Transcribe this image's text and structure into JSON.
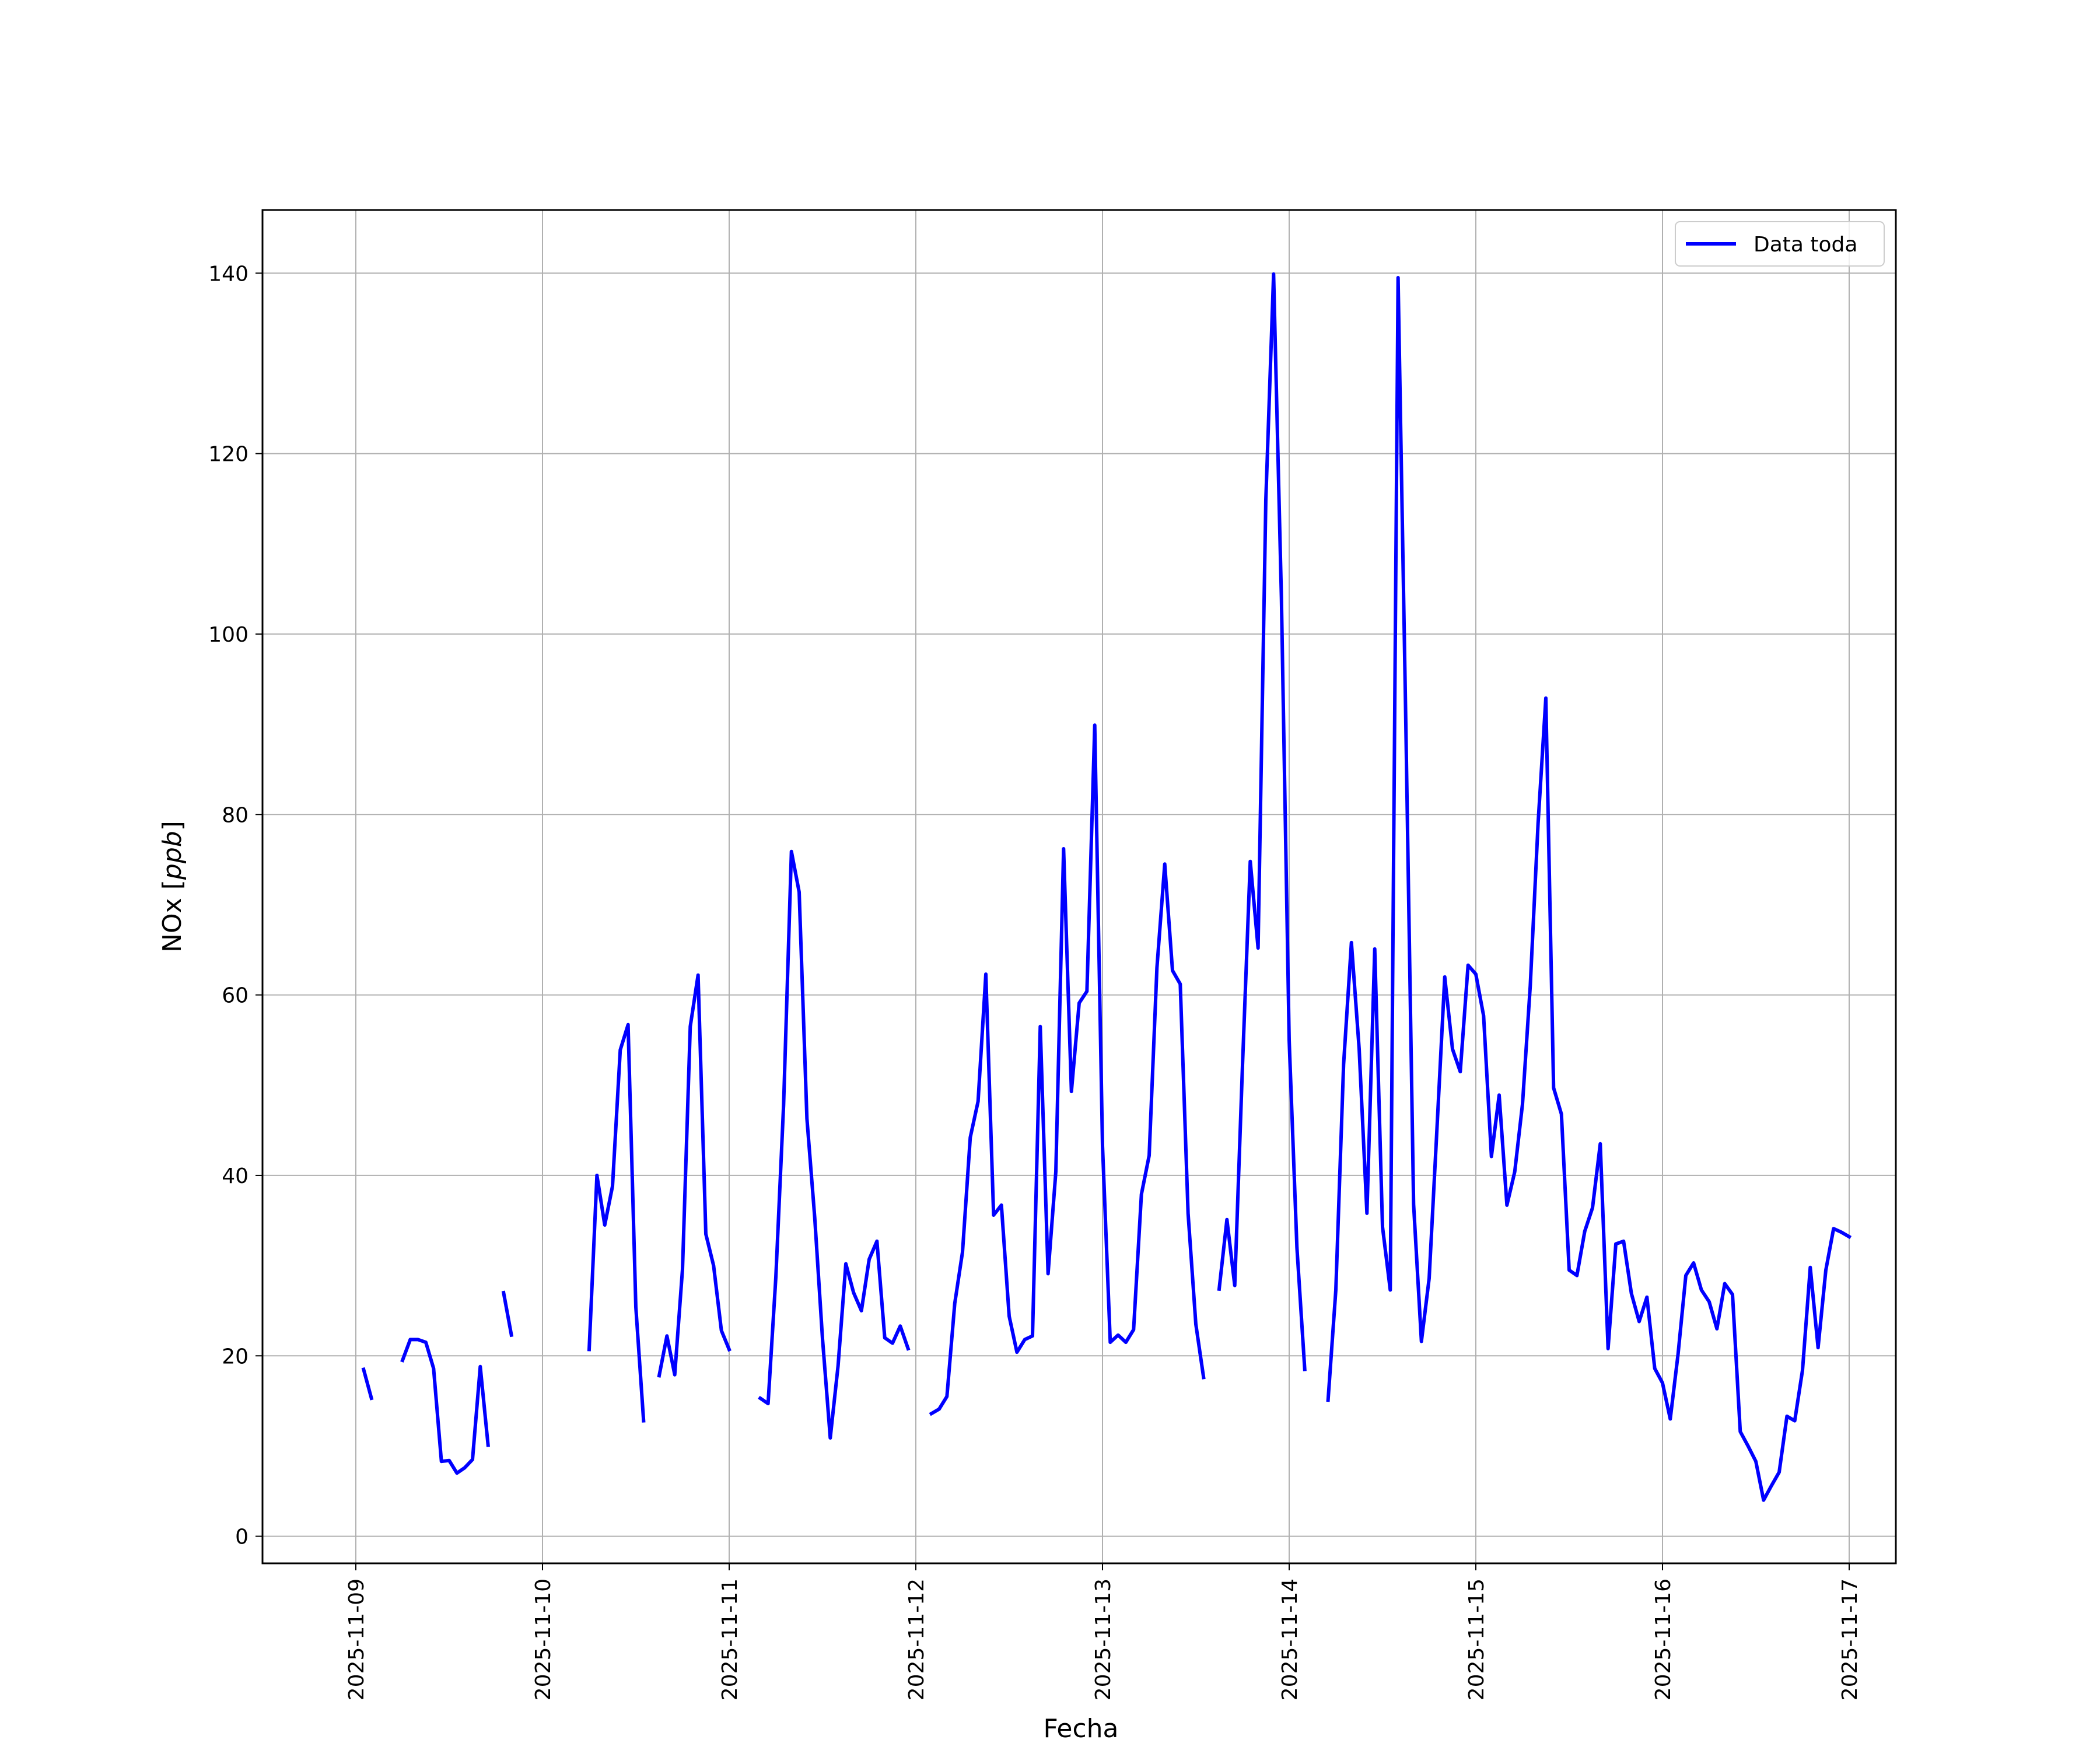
{
  "chart_data": {
    "type": "line",
    "title": "",
    "xlabel": "Fecha",
    "ylabel_main": "NOx [",
    "ylabel_unit": "ppb",
    "ylabel_close": "]",
    "x_ticks": [
      "2025-11-09",
      "2025-11-10",
      "2025-11-11",
      "2025-11-12",
      "2025-11-13",
      "2025-11-14",
      "2025-11-15",
      "2025-11-16",
      "2025-11-17"
    ],
    "y_ticks": [
      0,
      20,
      40,
      60,
      80,
      100,
      120,
      140
    ],
    "xlim": [
      "2025-11-08 12:00",
      "2025-11-17 06:00"
    ],
    "ylim": [
      -3,
      147
    ],
    "grid": true,
    "legend_position": "top-right",
    "series": [
      {
        "name": "Data toda",
        "color": "#0000ff",
        "segments": [
          [
            [
              "2025-11-09 01:00",
              18.5
            ],
            [
              "2025-11-09 02:00",
              15.3
            ]
          ],
          [
            [
              "2025-11-09 06:00",
              19.5
            ],
            [
              "2025-11-09 07:00",
              21.8
            ],
            [
              "2025-11-09 08:00",
              21.8
            ],
            [
              "2025-11-09 09:00",
              21.5
            ],
            [
              "2025-11-09 10:00",
              18.6
            ],
            [
              "2025-11-09 11:00",
              8.3
            ],
            [
              "2025-11-09 12:00",
              8.4
            ],
            [
              "2025-11-09 13:00",
              7.0
            ],
            [
              "2025-11-09 14:00",
              7.6
            ],
            [
              "2025-11-09 15:00",
              8.5
            ],
            [
              "2025-11-09 16:00",
              18.8
            ],
            [
              "2025-11-09 17:00",
              10.1
            ]
          ],
          [
            [
              "2025-11-09 19:00",
              27.0
            ],
            [
              "2025-11-09 20:00",
              22.3
            ]
          ],
          [
            [
              "2025-11-10 06:00",
              20.7
            ],
            [
              "2025-11-10 07:00",
              40.0
            ],
            [
              "2025-11-10 08:00",
              34.5
            ],
            [
              "2025-11-10 09:00",
              38.8
            ],
            [
              "2025-11-10 10:00",
              53.9
            ],
            [
              "2025-11-10 11:00",
              56.7
            ],
            [
              "2025-11-10 12:00",
              25.4
            ],
            [
              "2025-11-10 13:00",
              12.8
            ]
          ],
          [
            [
              "2025-11-10 15:00",
              17.8
            ],
            [
              "2025-11-10 16:00",
              22.2
            ],
            [
              "2025-11-10 17:00",
              17.9
            ],
            [
              "2025-11-10 18:00",
              29.6
            ],
            [
              "2025-11-10 19:00",
              56.5
            ],
            [
              "2025-11-10 20:00",
              62.2
            ],
            [
              "2025-11-10 21:00",
              33.5
            ],
            [
              "2025-11-10 22:00",
              30.0
            ],
            [
              "2025-11-10 23:00",
              22.8
            ],
            [
              "2025-11-11 00:00",
              20.7
            ]
          ],
          [
            [
              "2025-11-11 04:00",
              15.3
            ],
            [
              "2025-11-11 05:00",
              14.7
            ],
            [
              "2025-11-11 06:00",
              28.7
            ],
            [
              "2025-11-11 07:00",
              47.8
            ],
            [
              "2025-11-11 08:00",
              75.9
            ],
            [
              "2025-11-11 09:00",
              71.4
            ],
            [
              "2025-11-11 10:00",
              46.3
            ],
            [
              "2025-11-11 11:00",
              35.3
            ],
            [
              "2025-11-11 12:00",
              21.9
            ],
            [
              "2025-11-11 13:00",
              10.9
            ],
            [
              "2025-11-11 14:00",
              18.9
            ],
            [
              "2025-11-11 15:00",
              30.2
            ],
            [
              "2025-11-11 16:00",
              27.0
            ],
            [
              "2025-11-11 17:00",
              25.0
            ],
            [
              "2025-11-11 18:00",
              30.7
            ],
            [
              "2025-11-11 19:00",
              32.7
            ],
            [
              "2025-11-11 20:00",
              22.0
            ],
            [
              "2025-11-11 21:00",
              21.4
            ],
            [
              "2025-11-11 22:00",
              23.3
            ],
            [
              "2025-11-11 23:00",
              20.8
            ]
          ],
          [
            [
              "2025-11-12 02:00",
              13.6
            ],
            [
              "2025-11-12 03:00",
              14.1
            ],
            [
              "2025-11-12 04:00",
              15.5
            ],
            [
              "2025-11-12 05:00",
              25.8
            ],
            [
              "2025-11-12 06:00",
              31.5
            ],
            [
              "2025-11-12 07:00",
              44.2
            ],
            [
              "2025-11-12 08:00",
              48.2
            ],
            [
              "2025-11-12 09:00",
              62.3
            ],
            [
              "2025-11-12 10:00",
              35.6
            ],
            [
              "2025-11-12 11:00",
              36.7
            ],
            [
              "2025-11-12 12:00",
              24.4
            ],
            [
              "2025-11-12 13:00",
              20.4
            ],
            [
              "2025-11-12 14:00",
              21.8
            ],
            [
              "2025-11-12 15:00",
              22.2
            ],
            [
              "2025-11-12 16:00",
              56.5
            ],
            [
              "2025-11-12 17:00",
              29.1
            ],
            [
              "2025-11-12 18:00",
              40.4
            ],
            [
              "2025-11-12 19:00",
              76.2
            ],
            [
              "2025-11-12 20:00",
              49.3
            ],
            [
              "2025-11-12 21:00",
              59.1
            ],
            [
              "2025-11-12 22:00",
              60.4
            ],
            [
              "2025-11-12 23:00",
              89.9
            ],
            [
              "2025-11-13 00:00",
              43.3
            ],
            [
              "2025-11-13 01:00",
              21.5
            ],
            [
              "2025-11-13 02:00",
              22.3
            ],
            [
              "2025-11-13 03:00",
              21.5
            ],
            [
              "2025-11-13 04:00",
              22.9
            ],
            [
              "2025-11-13 05:00",
              37.9
            ],
            [
              "2025-11-13 06:00",
              42.2
            ],
            [
              "2025-11-13 07:00",
              63.0
            ],
            [
              "2025-11-13 08:00",
              74.5
            ],
            [
              "2025-11-13 09:00",
              62.7
            ],
            [
              "2025-11-13 10:00",
              61.2
            ],
            [
              "2025-11-13 11:00",
              35.8
            ],
            [
              "2025-11-13 12:00",
              23.5
            ],
            [
              "2025-11-13 13:00",
              17.6
            ]
          ],
          [
            [
              "2025-11-13 15:00",
              27.4
            ],
            [
              "2025-11-13 16:00",
              35.1
            ],
            [
              "2025-11-13 17:00",
              27.8
            ],
            [
              "2025-11-13 18:00",
              52.2
            ],
            [
              "2025-11-13 19:00",
              74.8
            ],
            [
              "2025-11-13 20:00",
              65.2
            ],
            [
              "2025-11-13 21:00",
              114.9
            ],
            [
              "2025-11-13 22:00",
              139.9
            ],
            [
              "2025-11-13 23:00",
              104.0
            ],
            [
              "2025-11-14 00:00",
              55.0
            ],
            [
              "2025-11-14 01:00",
              32.0
            ],
            [
              "2025-11-14 02:00",
              18.5
            ]
          ],
          [
            [
              "2025-11-14 05:00",
              15.1
            ],
            [
              "2025-11-14 06:00",
              27.3
            ],
            [
              "2025-11-14 07:00",
              52.3
            ],
            [
              "2025-11-14 08:00",
              65.8
            ],
            [
              "2025-11-14 09:00",
              54.0
            ],
            [
              "2025-11-14 10:00",
              35.8
            ],
            [
              "2025-11-14 11:00",
              65.1
            ],
            [
              "2025-11-14 12:00",
              34.3
            ],
            [
              "2025-11-14 13:00",
              27.3
            ],
            [
              "2025-11-14 14:00",
              139.5
            ],
            [
              "2025-11-14 15:00",
              90.0
            ],
            [
              "2025-11-14 16:00",
              36.8
            ],
            [
              "2025-11-14 17:00",
              21.6
            ],
            [
              "2025-11-14 18:00",
              28.6
            ],
            [
              "2025-11-14 19:00",
              45.1
            ],
            [
              "2025-11-14 20:00",
              62.0
            ],
            [
              "2025-11-14 21:00",
              54.0
            ],
            [
              "2025-11-14 22:00",
              51.5
            ],
            [
              "2025-11-14 23:00",
              63.3
            ],
            [
              "2025-11-15 00:00",
              62.3
            ],
            [
              "2025-11-15 01:00",
              57.7
            ],
            [
              "2025-11-15 02:00",
              42.1
            ],
            [
              "2025-11-15 03:00",
              48.9
            ],
            [
              "2025-11-15 04:00",
              36.7
            ],
            [
              "2025-11-15 05:00",
              40.4
            ],
            [
              "2025-11-15 06:00",
              47.9
            ],
            [
              "2025-11-15 07:00",
              61.0
            ],
            [
              "2025-11-15 08:00",
              79.0
            ],
            [
              "2025-11-15 09:00",
              92.9
            ],
            [
              "2025-11-15 10:00",
              49.7
            ],
            [
              "2025-11-15 11:00",
              46.8
            ],
            [
              "2025-11-15 12:00",
              29.5
            ],
            [
              "2025-11-15 13:00",
              28.9
            ],
            [
              "2025-11-15 14:00",
              33.8
            ],
            [
              "2025-11-15 15:00",
              36.4
            ],
            [
              "2025-11-15 16:00",
              43.5
            ],
            [
              "2025-11-15 17:00",
              20.8
            ],
            [
              "2025-11-15 18:00",
              32.4
            ],
            [
              "2025-11-15 19:00",
              32.7
            ],
            [
              "2025-11-15 20:00",
              26.9
            ],
            [
              "2025-11-15 21:00",
              23.8
            ],
            [
              "2025-11-15 22:00",
              26.5
            ],
            [
              "2025-11-15 23:00",
              18.6
            ],
            [
              "2025-11-16 00:00",
              17.0
            ],
            [
              "2025-11-16 01:00",
              13.0
            ],
            [
              "2025-11-16 02:00",
              20.2
            ],
            [
              "2025-11-16 03:00",
              28.9
            ],
            [
              "2025-11-16 04:00",
              30.3
            ],
            [
              "2025-11-16 05:00",
              27.3
            ],
            [
              "2025-11-16 06:00",
              26.0
            ],
            [
              "2025-11-16 07:00",
              23.0
            ],
            [
              "2025-11-16 08:00",
              28.0
            ],
            [
              "2025-11-16 09:00",
              26.8
            ],
            [
              "2025-11-16 10:00",
              11.6
            ],
            [
              "2025-11-16 11:00",
              10.0
            ],
            [
              "2025-11-16 12:00",
              8.3
            ],
            [
              "2025-11-16 13:00",
              4.0
            ],
            [
              "2025-11-16 14:00",
              5.6
            ],
            [
              "2025-11-16 15:00",
              7.1
            ],
            [
              "2025-11-16 16:00",
              13.3
            ],
            [
              "2025-11-16 17:00",
              12.8
            ],
            [
              "2025-11-16 18:00",
              18.4
            ],
            [
              "2025-11-16 19:00",
              29.8
            ],
            [
              "2025-11-16 20:00",
              20.9
            ],
            [
              "2025-11-16 21:00",
              29.5
            ],
            [
              "2025-11-16 22:00",
              34.1
            ],
            [
              "2025-11-16 23:00",
              33.7
            ],
            [
              "2025-11-17 00:00",
              33.2
            ]
          ]
        ]
      }
    ]
  }
}
